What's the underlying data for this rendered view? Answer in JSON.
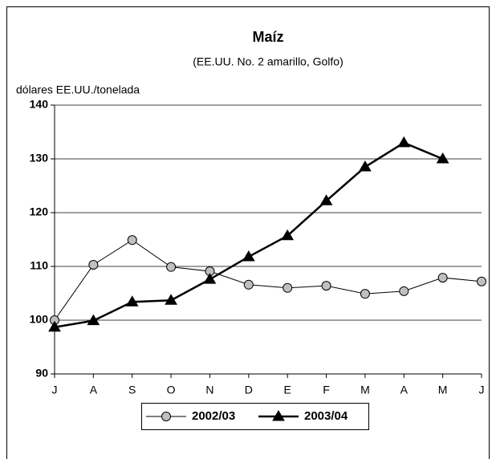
{
  "chart_data": {
    "type": "line",
    "title": "Maíz",
    "subtitle": "(EE.UU. No. 2 amarillo, Golfo)",
    "y_label": "dólares EE.UU./tonelada",
    "categories": [
      "J",
      "A",
      "S",
      "O",
      "N",
      "D",
      "E",
      "F",
      "M",
      "A",
      "M",
      "J"
    ],
    "series": [
      {
        "name": "2002/03",
        "color": "#c0c0c0",
        "marker": "circle",
        "values": [
          100,
          110.3,
          114.9,
          109.9,
          109.1,
          106.6,
          106,
          106.4,
          104.9,
          105.4,
          107.9,
          107.2
        ]
      },
      {
        "name": "2003/04",
        "color": "#000000",
        "marker": "triangle",
        "values": [
          98.7,
          99.9,
          103.4,
          103.7,
          107.6,
          111.8,
          115.7,
          122.2,
          128.5,
          133,
          130,
          null
        ]
      }
    ],
    "ylim": [
      90,
      140
    ],
    "yticks": [
      90,
      100,
      110,
      120,
      130,
      140
    ],
    "grid": true,
    "legend": "bottom"
  }
}
